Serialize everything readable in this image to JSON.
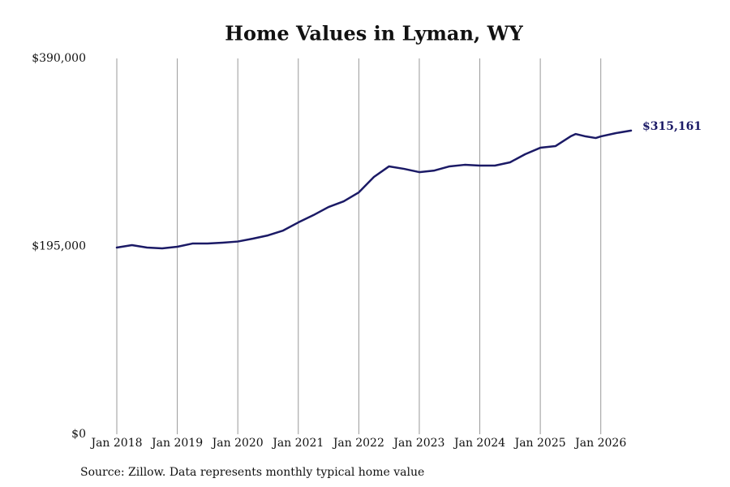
{
  "chart_data": {
    "type": "line",
    "title": "Home Values in Lyman, WY",
    "source": "Source: Zillow. Data represents monthly typical home value",
    "x": [
      "2018-01",
      "2018-04",
      "2018-07",
      "2018-10",
      "2019-01",
      "2019-04",
      "2019-07",
      "2019-10",
      "2020-01",
      "2020-04",
      "2020-07",
      "2020-10",
      "2021-01",
      "2021-04",
      "2021-07",
      "2021-10",
      "2022-01",
      "2022-04",
      "2022-07",
      "2022-10",
      "2023-01",
      "2023-04",
      "2023-07",
      "2023-10",
      "2024-01",
      "2024-04",
      "2024-07",
      "2024-10",
      "2025-01",
      "2025-04",
      "2025-07",
      "2025-08",
      "2025-10",
      "2025-12",
      "2026-01",
      "2026-04",
      "2026-07"
    ],
    "values": [
      193700,
      196300,
      193700,
      192900,
      194600,
      197900,
      197900,
      198800,
      200000,
      203000,
      206400,
      211400,
      219800,
      227400,
      235800,
      241700,
      251000,
      267000,
      278000,
      275400,
      272000,
      273700,
      278000,
      279600,
      278800,
      278800,
      282200,
      290600,
      297300,
      299000,
      309100,
      311600,
      309100,
      307400,
      309100,
      312500,
      315161
    ],
    "value_labels": [
      null,
      null,
      null,
      null,
      null,
      null,
      null,
      null,
      null,
      null,
      null,
      null,
      null,
      null,
      null,
      null,
      null,
      null,
      null,
      null,
      null,
      null,
      null,
      null,
      null,
      null,
      null,
      null,
      null,
      null,
      null,
      null,
      null,
      null,
      null,
      null,
      "$315,161"
    ],
    "color": "#1b1a66",
    "xlim": [
      "2018-01",
      "2026-07"
    ],
    "xticks": [
      {
        "value": "2018-01",
        "label": "Jan 2018"
      },
      {
        "value": "2019-01",
        "label": "Jan 2019"
      },
      {
        "value": "2020-01",
        "label": "Jan 2020"
      },
      {
        "value": "2021-01",
        "label": "Jan 2021"
      },
      {
        "value": "2022-01",
        "label": "Jan 2022"
      },
      {
        "value": "2023-01",
        "label": "Jan 2023"
      },
      {
        "value": "2024-01",
        "label": "Jan 2024"
      },
      {
        "value": "2025-01",
        "label": "Jan 2025"
      },
      {
        "value": "2026-01",
        "label": "Jan 2026"
      }
    ],
    "ylim": [
      0,
      390000
    ],
    "yticks": [
      {
        "value": 0,
        "label": "$0"
      },
      {
        "value": 195000,
        "label": "$195,000"
      },
      {
        "value": 390000,
        "label": "$390,000"
      }
    ],
    "grid": "x"
  }
}
